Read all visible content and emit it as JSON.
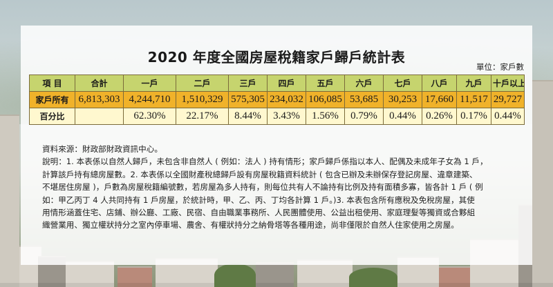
{
  "title": "2020 年度全國房屋稅籍家戶歸戶統計表",
  "unit": "單位：家戶數",
  "table": {
    "headers": [
      "項 目",
      "合計",
      "一戶",
      "二戶",
      "三戶",
      "四戶",
      "五戶",
      "六戶",
      "七戶",
      "八戶",
      "九戶",
      "十戶以上"
    ],
    "rows": [
      {
        "label": "家戶所有",
        "values": [
          "6,813,303",
          "4,244,710",
          "1,510,329",
          "575,305",
          "234,032",
          "106,085",
          "53,685",
          "30,253",
          "17,660",
          "11,517",
          "29,727"
        ]
      },
      {
        "label": "百分比",
        "values": [
          "",
          "62.30%",
          "22.17%",
          "8.44%",
          "3.43%",
          "1.56%",
          "0.79%",
          "0.44%",
          "0.26%",
          "0.17%",
          "0.44%"
        ]
      }
    ]
  },
  "notes": {
    "source": "資料來源：財政部財政資訊中心。",
    "lines": [
      "說明：1. 本表係以自然人歸戶，未包含非自然人 ( 例如：法人 ) 持有情形；家戶歸戶係指以本人、配偶及未成年子女為 1 戶，",
      "計算該戶持有總房屋數。2. 本表係以全國財產稅總歸戶設有房屋稅籍資料統計 ( 包含已辦及未辦保存登記房屋、違章建築、",
      "不堪居住房屋 )，戶數為房屋稅籍編號數，若房屋為多人持有，則每位共有人不論持有比例及持有面積多寡，皆各計 1 戶 ( 例",
      "如：甲乙丙丁 4 人共同持有 1 戶房屋，於統計時，甲、乙、丙、丁均各計算 1 戶。)3. 本表包含所有應稅及免稅房屋，其使",
      "用情形涵蓋住宅、店鋪、辦公廳、工廠、民宿、自由職業事務所、人民團體使用、公益出租使用、家庭理髮等獨資或合夥組",
      "織營業用、獨立權狀持分之室內停車場、農舍、有權狀持分之納骨塔等各種用途，尚非僅限於自然人住家使用之房屋。"
    ]
  }
}
